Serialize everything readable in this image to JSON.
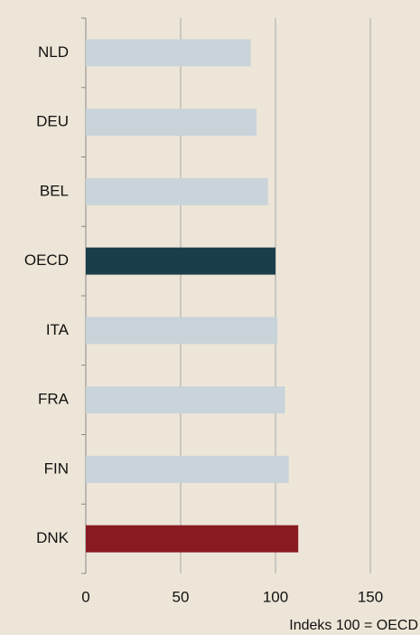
{
  "chart_data": {
    "type": "hbar",
    "categories": [
      "NLD",
      "DEU",
      "BEL",
      "OECD",
      "ITA",
      "FRA",
      "FIN",
      "DNK"
    ],
    "values": [
      87,
      90,
      96,
      100,
      101,
      105,
      107,
      112
    ],
    "colors": [
      "#c9d3da",
      "#c9d3da",
      "#c9d3da",
      "#1b3e4b",
      "#c9d3da",
      "#c9d3da",
      "#c9d3da",
      "#8a1a22"
    ],
    "xlim": [
      0,
      150
    ],
    "xticks": [
      0,
      50,
      100,
      150
    ],
    "grid": true,
    "xlabel": "Indeks 100 = OECD"
  }
}
